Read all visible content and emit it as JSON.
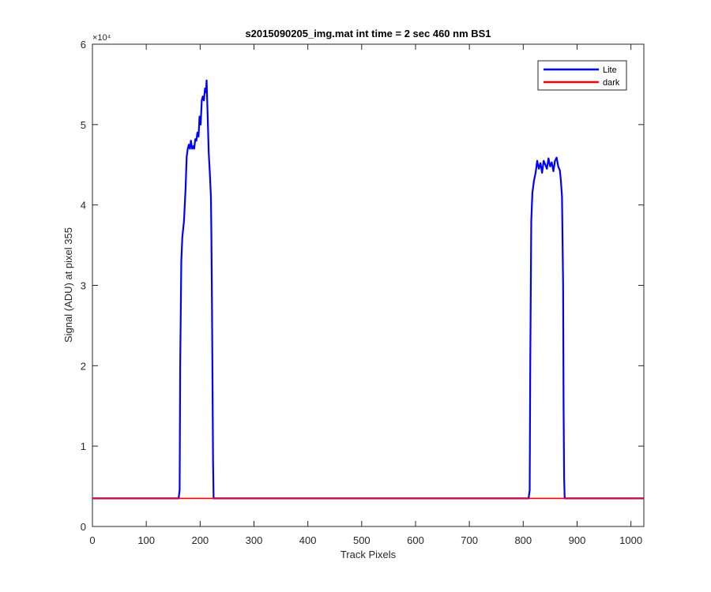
{
  "chart_data": {
    "type": "line",
    "title": "s2015090205_img.mat int time = 2 sec  460 nm BS1",
    "xlabel": "Track Pixels",
    "ylabel": "Signal (ADU) at pixel 355",
    "xlim": [
      0,
      1024
    ],
    "ylim": [
      0,
      60000
    ],
    "xticks": [
      0,
      100,
      200,
      300,
      400,
      500,
      600,
      700,
      800,
      900,
      1000
    ],
    "yticks": [
      0,
      10000,
      20000,
      30000,
      40000,
      50000,
      60000
    ],
    "yticklabels": [
      "0",
      "1",
      "2",
      "3",
      "4",
      "5",
      "6"
    ],
    "yexponent": "×10⁴",
    "grid": false,
    "legend_position": "top-right",
    "series": [
      {
        "name": "Lite",
        "color": "#0000ff",
        "x": [
          0,
          160,
          162,
          163,
          165,
          167,
          170,
          173,
          175,
          177,
          179,
          181,
          183,
          185,
          187,
          189,
          191,
          193,
          195,
          197,
          199,
          201,
          203,
          205,
          207,
          209,
          211,
          212,
          214,
          216,
          218,
          220,
          221,
          222,
          223,
          224,
          225,
          227,
          229,
          1024
        ],
        "y": [
          3500,
          3500,
          4500,
          20000,
          33000,
          36000,
          38000,
          42000,
          46000,
          47000,
          47500,
          47000,
          48000,
          47000,
          47300,
          47000,
          48200,
          48000,
          49000,
          48500,
          51000,
          50000,
          53000,
          53500,
          53000,
          54500,
          54000,
          55500,
          51000,
          46500,
          44000,
          41000,
          36000,
          28000,
          18000,
          8000,
          3500,
          3500,
          3500,
          3500
        ],
        "segments": [
          {
            "x": [
              0,
              810,
              812,
              813,
              815,
              817,
              820,
              823,
              826,
              829,
              832,
              835,
              838,
              841,
              844,
              847,
              850,
              853,
              856,
              859,
              862,
              865,
              868,
              870,
              872,
              874,
              875,
              876,
              877,
              880,
              1024
            ],
            "y": [
              3500,
              3500,
              4500,
              20000,
              38000,
              41500,
              43000,
              44000,
              45500,
              44500,
              45200,
              44000,
              45500,
              45000,
              44500,
              45800,
              44800,
              45300,
              44200,
              45500,
              45900,
              44800,
              44300,
              43000,
              41000,
              30000,
              15000,
              6000,
              3500,
              3500,
              3500
            ]
          }
        ]
      },
      {
        "name": "dark",
        "color": "#ff0000",
        "x": [
          0,
          1024
        ],
        "y": [
          3500,
          3500
        ]
      }
    ]
  }
}
